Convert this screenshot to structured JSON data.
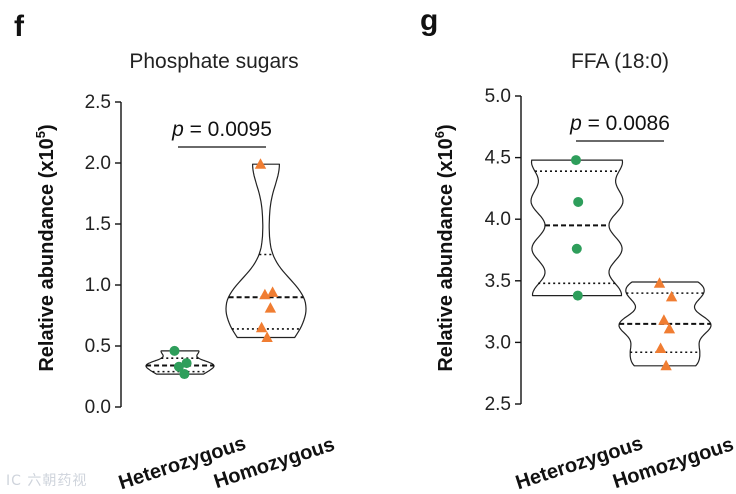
{
  "chart_data": [
    {
      "type": "violin",
      "panel": "f",
      "title": "Phosphate sugars",
      "ylabel_main": "Relative abundance (x10",
      "ylabel_exp": "5",
      "ylabel_close": ")",
      "ylim": [
        0,
        2.5
      ],
      "yticks": [
        0.0,
        0.5,
        1.0,
        1.5,
        2.0,
        2.5
      ],
      "ytick_labels": [
        "0.0",
        "0.5",
        "1.0",
        "1.5",
        "2.0",
        "2.5"
      ],
      "categories": [
        "Heterozygous",
        "Homozygous"
      ],
      "series": [
        {
          "category": "Heterozygous",
          "color": "#2e9e5b",
          "marker": "circle",
          "points": [
            0.46,
            0.36,
            0.33,
            0.27
          ],
          "median": 0.34,
          "q1": 0.29,
          "q3": 0.4,
          "violin_min": 0.27,
          "violin_max": 0.46
        },
        {
          "category": "Homozygous",
          "color": "#f07d32",
          "marker": "triangle",
          "points": [
            1.99,
            0.94,
            0.92,
            0.81,
            0.65,
            0.57
          ],
          "median": 0.9,
          "q1": 0.64,
          "q3": 1.25,
          "violin_min": 0.57,
          "violin_max": 1.99
        }
      ],
      "annotation": {
        "p_label": "p",
        "text": " = 0.0095"
      }
    },
    {
      "type": "violin",
      "panel": "g",
      "title": "FFA (18:0)",
      "ylabel_main": "Relative abundance (x10",
      "ylabel_exp": "6",
      "ylabel_close": ")",
      "ylim": [
        2.5,
        5.0
      ],
      "yticks": [
        2.5,
        3.0,
        3.5,
        4.0,
        4.5,
        5.0
      ],
      "ytick_labels": [
        "2.5",
        "3.0",
        "3.5",
        "4.0",
        "4.5",
        "5.0"
      ],
      "categories": [
        "Heterozygous",
        "Homozygous"
      ],
      "series": [
        {
          "category": "Heterozygous",
          "color": "#2e9e5b",
          "marker": "circle",
          "points": [
            4.48,
            4.14,
            3.76,
            3.38
          ],
          "median": 3.95,
          "q1": 3.48,
          "q3": 4.39,
          "violin_min": 3.38,
          "violin_max": 4.48
        },
        {
          "category": "Homozygous",
          "color": "#f07d32",
          "marker": "triangle",
          "points": [
            3.48,
            3.37,
            3.18,
            3.11,
            2.95,
            2.81
          ],
          "median": 3.15,
          "q1": 2.92,
          "q3": 3.4,
          "violin_min": 2.81,
          "violin_max": 3.49
        }
      ],
      "annotation": {
        "p_label": "p",
        "text": " = 0.0086"
      }
    }
  ],
  "watermark": "IC 六朝药视"
}
